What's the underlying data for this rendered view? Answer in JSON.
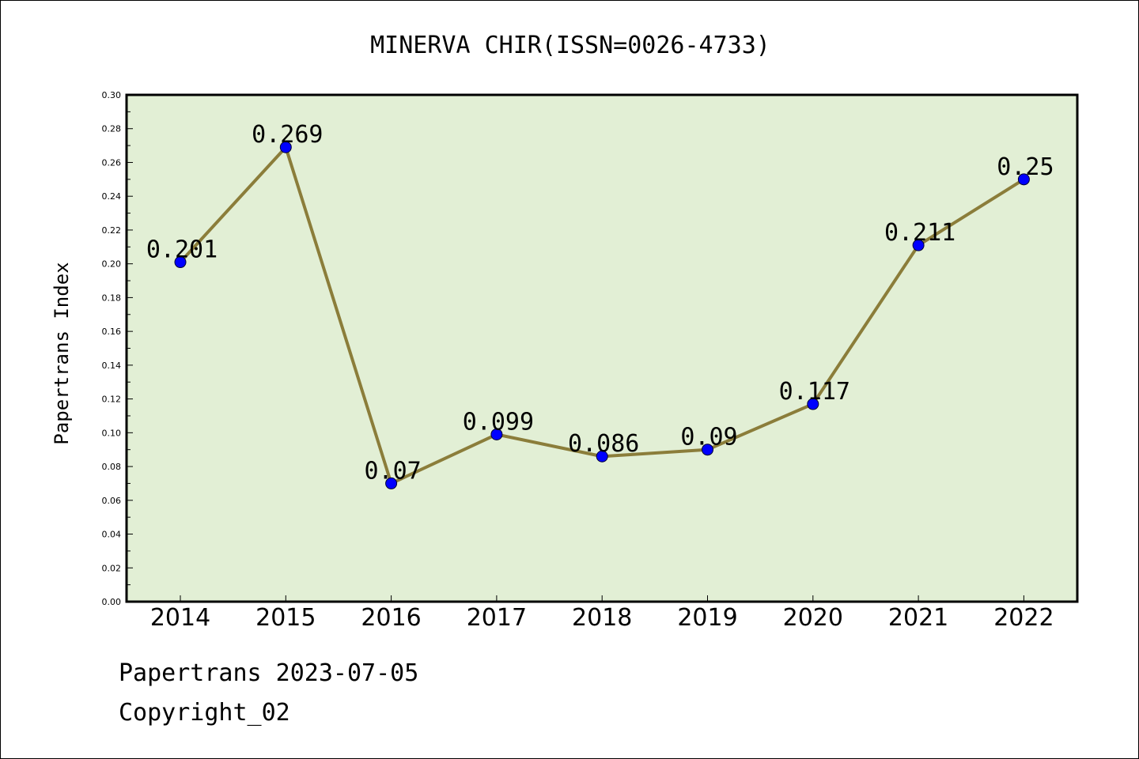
{
  "chart_data": {
    "type": "line",
    "title": "MINERVA CHIR(ISSN=0026-4733)",
    "ylabel": "Papertrans Index",
    "xlabel": "",
    "categories": [
      "2014",
      "2015",
      "2016",
      "2017",
      "2018",
      "2019",
      "2020",
      "2021",
      "2022"
    ],
    "values": [
      0.201,
      0.269,
      0.07,
      0.099,
      0.086,
      0.09,
      0.117,
      0.211,
      0.25
    ],
    "data_labels": [
      "0.201",
      "0.269",
      "0.07",
      "0.099",
      "0.086",
      "0.09",
      "0.117",
      "0.211",
      "0.25"
    ],
    "ylim": [
      0,
      0.3
    ],
    "yticks": [
      "0.00",
      "0.02",
      "0.04",
      "0.06",
      "0.08",
      "0.10",
      "0.12",
      "0.14",
      "0.16",
      "0.18",
      "0.20",
      "0.22",
      "0.24",
      "0.26",
      "0.28",
      "0.30"
    ],
    "grid": false,
    "colors": {
      "plot_background": "#e2efd5",
      "line": "#8b7d3a",
      "marker": "#0000ff"
    }
  },
  "footer": {
    "date_line": "Papertrans 2023-07-05",
    "copyright": "Copyright_02"
  }
}
